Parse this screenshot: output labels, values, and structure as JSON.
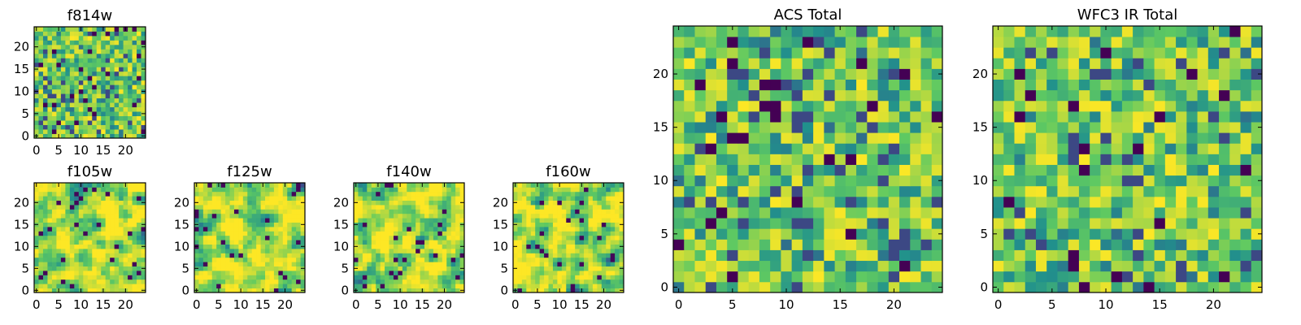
{
  "figure": {
    "description_type": "heatmap-grid",
    "colormap": {
      "name": "viridis",
      "stops": [
        "#440154",
        "#3b528b",
        "#21918c",
        "#5ec962",
        "#fde725"
      ]
    }
  },
  "chart_data": [
    {
      "type": "heatmap",
      "id": "f814w",
      "title": "f814w",
      "grid_size": 25,
      "xlim": [
        0,
        24
      ],
      "ylim": [
        0,
        24
      ],
      "xticks": [
        0,
        5,
        10,
        15,
        20
      ],
      "yticks": [
        0,
        5,
        10,
        15,
        20
      ],
      "xtick_labels": [
        "0",
        "5",
        "10",
        "15",
        "20"
      ],
      "ytick_labels": [
        "0",
        "5",
        "10",
        "15",
        "20"
      ],
      "value_range": [
        0,
        1
      ],
      "seed": 814,
      "smoothness": 0
    },
    {
      "type": "heatmap",
      "id": "f105w",
      "title": "f105w",
      "grid_size": 25,
      "xlim": [
        0,
        24
      ],
      "ylim": [
        0,
        24
      ],
      "xticks": [
        0,
        5,
        10,
        15,
        20
      ],
      "yticks": [
        0,
        5,
        10,
        15,
        20
      ],
      "xtick_labels": [
        "0",
        "5",
        "10",
        "15",
        "20"
      ],
      "ytick_labels": [
        "0",
        "5",
        "10",
        "15",
        "20"
      ],
      "value_range": [
        0,
        1
      ],
      "seed": 105,
      "smoothness": 1
    },
    {
      "type": "heatmap",
      "id": "f125w",
      "title": "f125w",
      "grid_size": 25,
      "xlim": [
        0,
        24
      ],
      "ylim": [
        0,
        24
      ],
      "xticks": [
        0,
        5,
        10,
        15,
        20
      ],
      "yticks": [
        0,
        5,
        10,
        15,
        20
      ],
      "xtick_labels": [
        "0",
        "5",
        "10",
        "15",
        "20"
      ],
      "ytick_labels": [
        "0",
        "5",
        "10",
        "15",
        "20"
      ],
      "value_range": [
        0,
        1
      ],
      "seed": 125,
      "smoothness": 1
    },
    {
      "type": "heatmap",
      "id": "f140w",
      "title": "f140w",
      "grid_size": 25,
      "xlim": [
        0,
        24
      ],
      "ylim": [
        0,
        24
      ],
      "xticks": [
        0,
        5,
        10,
        15,
        20
      ],
      "yticks": [
        0,
        5,
        10,
        15,
        20
      ],
      "xtick_labels": [
        "0",
        "5",
        "10",
        "15",
        "20"
      ],
      "ytick_labels": [
        "0",
        "5",
        "10",
        "15",
        "20"
      ],
      "value_range": [
        0,
        1
      ],
      "seed": 140,
      "smoothness": 1
    },
    {
      "type": "heatmap",
      "id": "f160w",
      "title": "f160w",
      "grid_size": 25,
      "xlim": [
        0,
        24
      ],
      "ylim": [
        0,
        24
      ],
      "xticks": [
        0,
        5,
        10,
        15,
        20
      ],
      "yticks": [
        0,
        5,
        10,
        15,
        20
      ],
      "xtick_labels": [
        "0",
        "5",
        "10",
        "15",
        "20"
      ],
      "ytick_labels": [
        "0",
        "5",
        "10",
        "15",
        "20"
      ],
      "value_range": [
        0,
        1
      ],
      "seed": 160,
      "smoothness": 1
    },
    {
      "type": "heatmap",
      "id": "acs-total",
      "title": "ACS Total",
      "grid_size": 25,
      "xlim": [
        0,
        24
      ],
      "ylim": [
        0,
        24
      ],
      "xticks": [
        0,
        5,
        10,
        15,
        20
      ],
      "yticks": [
        0,
        5,
        10,
        15,
        20
      ],
      "xtick_labels": [
        "0",
        "5",
        "10",
        "15",
        "20"
      ],
      "ytick_labels": [
        "0",
        "5",
        "10",
        "15",
        "20"
      ],
      "value_range": [
        0,
        1
      ],
      "seed": 2001,
      "smoothness": 0
    },
    {
      "type": "heatmap",
      "id": "wfc3-ir-total",
      "title": "WFC3 IR Total",
      "grid_size": 25,
      "xlim": [
        0,
        24
      ],
      "ylim": [
        0,
        24
      ],
      "xticks": [
        0,
        5,
        10,
        15,
        20
      ],
      "yticks": [
        0,
        5,
        10,
        15,
        20
      ],
      "xtick_labels": [
        "0",
        "5",
        "10",
        "15",
        "20"
      ],
      "ytick_labels": [
        "0",
        "5",
        "10",
        "15",
        "20"
      ],
      "value_range": [
        0,
        1
      ],
      "seed": 3003,
      "smoothness": 0
    }
  ]
}
